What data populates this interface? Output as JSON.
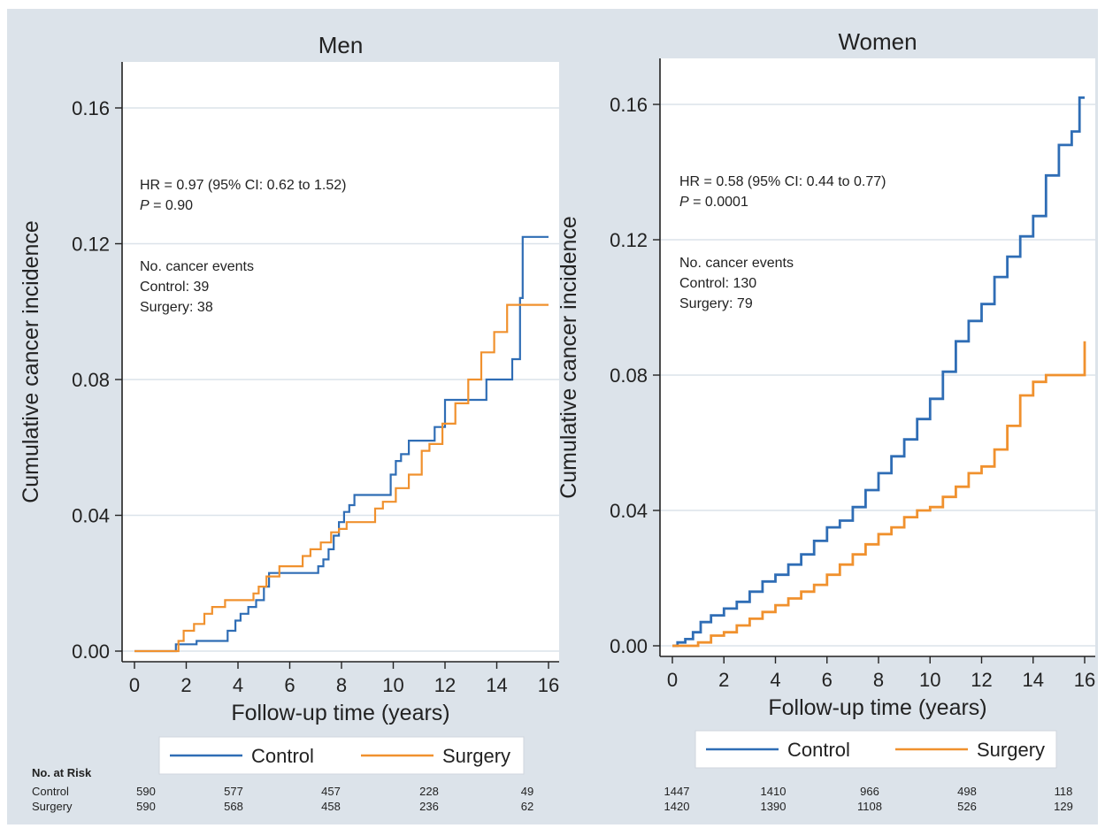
{
  "chart_data": [
    {
      "type": "line",
      "title": "Men",
      "xlabel": "Follow-up time (years)",
      "ylabel": "Cumulative cancer incidence",
      "xlim": [
        0,
        16
      ],
      "ylim": [
        0,
        0.16
      ],
      "xticks": [
        "0",
        "2",
        "4",
        "6",
        "8",
        "10",
        "12",
        "14",
        "16"
      ],
      "yticks": [
        "0.00",
        "0.04",
        "0.08",
        "0.12",
        "0.16"
      ],
      "grid": "horizontal",
      "annotation": {
        "hr": "HR = 0.97 (95% CI: 0.62 to 1.52)",
        "p_label": "P",
        "p_value": " = 0.90",
        "events_title": "No. cancer events",
        "control": "Control: 39",
        "surgery": "Surgery: 38"
      },
      "legend": {
        "position": "bottom",
        "items": [
          "Control",
          "Surgery"
        ]
      },
      "series": [
        {
          "name": "Control",
          "color": "#2f6db5",
          "x": [
            0,
            1.5,
            1.6,
            2.4,
            3.6,
            3.9,
            4.1,
            4.4,
            4.7,
            5.0,
            5.2,
            7.1,
            7.3,
            7.5,
            7.7,
            7.9,
            8.1,
            8.3,
            8.5,
            8.7,
            9.9,
            10.1,
            10.3,
            10.6,
            11.3,
            11.6,
            12.0,
            12.3,
            13.6,
            14.2,
            14.6,
            14.9,
            15.0,
            16.0
          ],
          "y": [
            0,
            0,
            0.002,
            0.003,
            0.006,
            0.009,
            0.011,
            0.013,
            0.015,
            0.019,
            0.023,
            0.025,
            0.027,
            0.03,
            0.034,
            0.038,
            0.041,
            0.043,
            0.046,
            0.046,
            0.052,
            0.056,
            0.058,
            0.062,
            0.062,
            0.066,
            0.074,
            0.074,
            0.08,
            0.08,
            0.086,
            0.104,
            0.122,
            0.122
          ]
        },
        {
          "name": "Surgery",
          "color": "#f0912e",
          "x": [
            0,
            1.5,
            1.7,
            1.9,
            2.3,
            2.7,
            3.0,
            3.5,
            4.6,
            4.8,
            5.1,
            5.6,
            6.5,
            6.8,
            7.2,
            7.6,
            7.9,
            8.2,
            9.3,
            9.6,
            10.1,
            10.6,
            11.1,
            11.4,
            11.9,
            12.4,
            12.9,
            13.4,
            13.9,
            14.4,
            16.0
          ],
          "y": [
            0,
            0,
            0.003,
            0.006,
            0.008,
            0.011,
            0.013,
            0.015,
            0.017,
            0.019,
            0.022,
            0.025,
            0.028,
            0.03,
            0.032,
            0.035,
            0.036,
            0.038,
            0.042,
            0.044,
            0.048,
            0.052,
            0.059,
            0.061,
            0.067,
            0.073,
            0.08,
            0.088,
            0.094,
            0.102,
            0.102
          ]
        }
      ]
    },
    {
      "type": "line",
      "title": "Women",
      "xlabel": "Follow-up time (years)",
      "ylabel": "Cumulative cancer incidence",
      "xlim": [
        0,
        16
      ],
      "ylim": [
        0,
        0.16
      ],
      "xticks": [
        "0",
        "2",
        "4",
        "6",
        "8",
        "10",
        "12",
        "14",
        "16"
      ],
      "yticks": [
        "0.00",
        "0.04",
        "0.08",
        "0.12",
        "0.16"
      ],
      "grid": "horizontal",
      "annotation": {
        "hr": "HR = 0.58 (95% CI: 0.44 to 0.77)",
        "p_label": "P",
        "p_value": " = 0.0001",
        "events_title": "No. cancer events",
        "control": "Control: 130",
        "surgery": "Surgery: 79"
      },
      "legend": {
        "position": "bottom",
        "items": [
          "Control",
          "Surgery"
        ]
      },
      "series": [
        {
          "name": "Control",
          "color": "#2f6db5",
          "x": [
            0,
            0.2,
            0.5,
            0.8,
            1.1,
            1.5,
            2.0,
            2.5,
            3.0,
            3.5,
            4.0,
            4.5,
            5.0,
            5.5,
            6.0,
            6.5,
            7.0,
            7.5,
            8.0,
            8.5,
            9.0,
            9.5,
            10.0,
            10.5,
            11.0,
            11.5,
            12.0,
            12.5,
            13.0,
            13.5,
            14.0,
            14.5,
            15.0,
            15.5,
            15.8,
            16.0
          ],
          "y": [
            0,
            0.001,
            0.002,
            0.004,
            0.007,
            0.009,
            0.011,
            0.013,
            0.016,
            0.019,
            0.021,
            0.024,
            0.027,
            0.031,
            0.035,
            0.037,
            0.041,
            0.046,
            0.051,
            0.056,
            0.061,
            0.067,
            0.073,
            0.081,
            0.09,
            0.096,
            0.101,
            0.109,
            0.115,
            0.121,
            0.127,
            0.139,
            0.148,
            0.152,
            0.162,
            0.162
          ]
        },
        {
          "name": "Surgery",
          "color": "#f0912e",
          "x": [
            0,
            0.5,
            1.0,
            1.5,
            2.0,
            2.5,
            3.0,
            3.5,
            4.0,
            4.5,
            5.0,
            5.5,
            6.0,
            6.5,
            7.0,
            7.5,
            8.0,
            8.5,
            9.0,
            9.5,
            10.0,
            10.5,
            11.0,
            11.5,
            12.0,
            12.5,
            13.0,
            13.5,
            14.0,
            14.5,
            15.0,
            15.5,
            15.8,
            16.0
          ],
          "y": [
            0,
            0,
            0.001,
            0.003,
            0.004,
            0.006,
            0.008,
            0.01,
            0.012,
            0.014,
            0.016,
            0.018,
            0.021,
            0.024,
            0.027,
            0.03,
            0.033,
            0.035,
            0.038,
            0.04,
            0.041,
            0.044,
            0.047,
            0.051,
            0.053,
            0.058,
            0.065,
            0.074,
            0.078,
            0.08,
            0.08,
            0.08,
            0.08,
            0.09
          ]
        }
      ]
    }
  ],
  "risk_table": {
    "title": "No. at Risk",
    "rows": [
      {
        "label": "Control",
        "men": [
          "590",
          "577",
          "457",
          "228",
          "49"
        ],
        "women": [
          "1447",
          "1410",
          "966",
          "498",
          "118"
        ]
      },
      {
        "label": "Surgery",
        "men": [
          "590",
          "568",
          "458",
          "236",
          "62"
        ],
        "women": [
          "1420",
          "1390",
          "1108",
          "526",
          "129"
        ]
      }
    ]
  },
  "colors": {
    "background": "#dce3ea",
    "plot_area": "#ffffff",
    "grid": "#dce3ea",
    "control": "#2f6db5",
    "surgery": "#f0912e"
  }
}
